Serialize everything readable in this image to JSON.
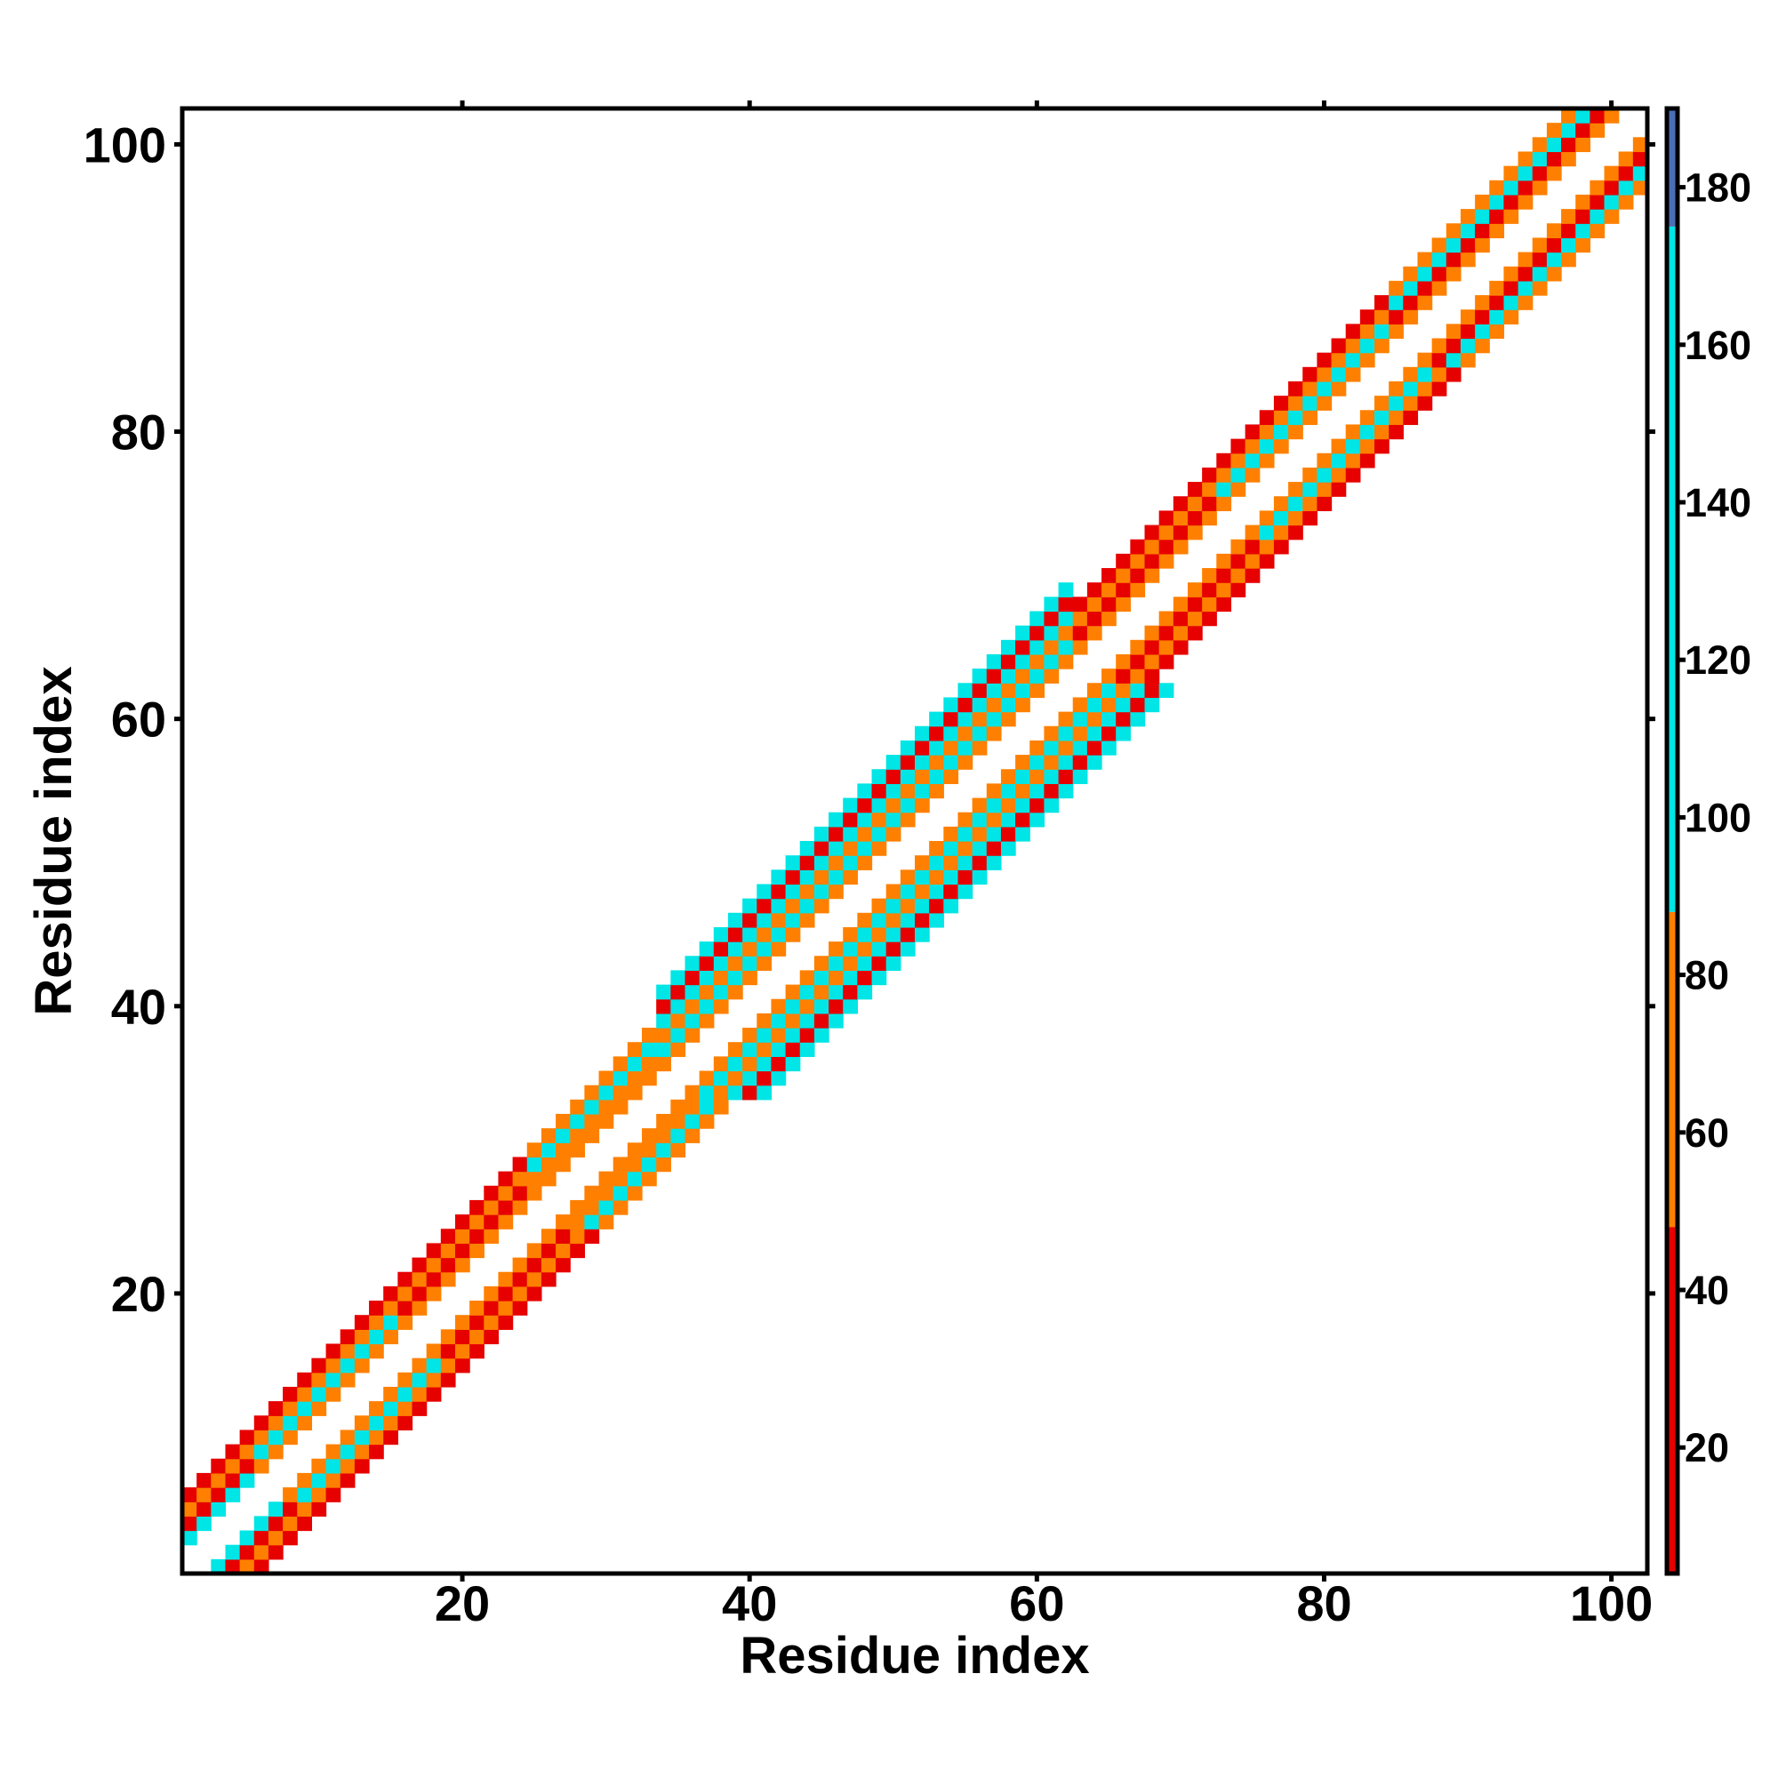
{
  "chart_data": {
    "type": "heatmap",
    "title": "",
    "xlabel": "Residue index",
    "ylabel": "Residue index",
    "x_range": [
      1,
      102
    ],
    "y_range": [
      1,
      102
    ],
    "xticks": [
      20,
      40,
      60,
      80,
      100
    ],
    "yticks": [
      20,
      40,
      60,
      80,
      100
    ],
    "grid": false,
    "background_value": "none",
    "colorbar": {
      "range": [
        4,
        190
      ],
      "ticks": [
        20,
        40,
        60,
        80,
        100,
        120,
        140,
        160,
        180
      ],
      "segments": [
        {
          "from": 4,
          "to": 48,
          "color": "#e60000"
        },
        {
          "from": 48,
          "to": 88,
          "color": "#ff8000"
        },
        {
          "from": 88,
          "to": 175,
          "color": "#00e5e5"
        },
        {
          "from": 175,
          "to": 190,
          "color": "#4a6fb5"
        }
      ]
    },
    "band": [
      {
        "from": 1,
        "to": 5,
        "offsets": {
          "2": 98,
          "3": 40,
          "4": 56,
          "5": 30
        }
      },
      {
        "from": 6,
        "to": 15,
        "offsets": {
          "2": 70,
          "3": 110,
          "4": 60,
          "5": 30
        }
      },
      {
        "from": 16,
        "to": 24,
        "offsets": {
          "2": 60,
          "3": 30,
          "4": 55,
          "5": 25
        }
      },
      {
        "from": 25,
        "to": 33,
        "offsets": {
          "2": 80,
          "3": 60,
          "4": 105,
          "5": 55
        }
      },
      {
        "from": 34,
        "to": 62,
        "offsets": {
          "2": 55,
          "3": 105,
          "4": 60,
          "5": 110,
          "6": 35,
          "7": 100
        }
      },
      {
        "from": 63,
        "to": 72,
        "offsets": {
          "2": 75,
          "3": 30,
          "4": 58,
          "5": 25
        }
      },
      {
        "from": 73,
        "to": 84,
        "offsets": {
          "2": 58,
          "3": 105,
          "4": 60,
          "5": 30
        }
      },
      {
        "from": 85,
        "to": 102,
        "offsets": {
          "2": 55,
          "3": 30,
          "4": 110,
          "5": 60
        }
      }
    ]
  }
}
